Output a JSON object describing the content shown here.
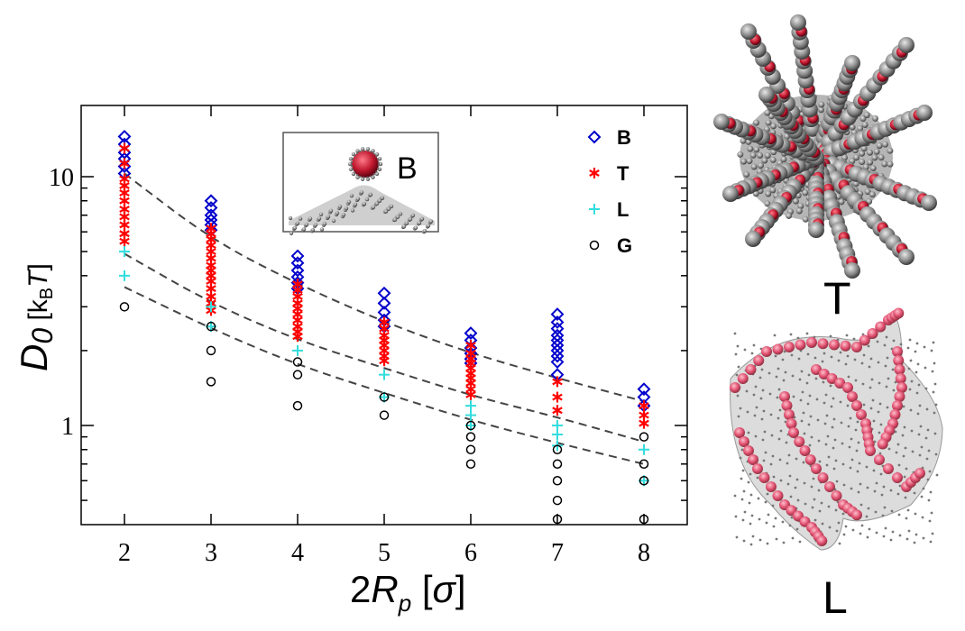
{
  "chart_data": {
    "type": "scatter",
    "xlabel": "2R_p [σ]",
    "ylabel": "D_0 [k_B T]",
    "x_ticks": [
      2,
      3,
      4,
      5,
      6,
      7,
      8
    ],
    "y_ticks": [
      1,
      10
    ],
    "xlim": [
      1.5,
      8.5
    ],
    "ylim": [
      0.4,
      20
    ],
    "y_scale": "log",
    "grid": false,
    "legend_position": "top-right",
    "series": [
      {
        "name": "B",
        "marker": "diamond",
        "color": "#0000cc",
        "points": [
          [
            2,
            14.5
          ],
          [
            2,
            13.5
          ],
          [
            2,
            12.5
          ],
          [
            2,
            11.8
          ],
          [
            2,
            11.0
          ],
          [
            2,
            10.3
          ],
          [
            3,
            8.0
          ],
          [
            3,
            7.5
          ],
          [
            3,
            7.0
          ],
          [
            3,
            6.7
          ],
          [
            3,
            6.4
          ],
          [
            3,
            6.1
          ],
          [
            4,
            4.8
          ],
          [
            4,
            4.5
          ],
          [
            4,
            4.2
          ],
          [
            4,
            3.95
          ],
          [
            4,
            3.75
          ],
          [
            4,
            3.55
          ],
          [
            5,
            3.4
          ],
          [
            5,
            3.1
          ],
          [
            5,
            2.85
          ],
          [
            5,
            2.65
          ],
          [
            5,
            2.5
          ],
          [
            6,
            2.35
          ],
          [
            6,
            2.2
          ],
          [
            6,
            2.05
          ],
          [
            6,
            1.95
          ],
          [
            6,
            1.85
          ],
          [
            6,
            1.78
          ],
          [
            7,
            2.8
          ],
          [
            7,
            2.6
          ],
          [
            7,
            2.45
          ],
          [
            7,
            2.3
          ],
          [
            7,
            2.2
          ],
          [
            7,
            2.1
          ],
          [
            7,
            2.0
          ],
          [
            7,
            1.9
          ],
          [
            7,
            1.8
          ],
          [
            7,
            1.6
          ],
          [
            8,
            1.4
          ],
          [
            8,
            1.3
          ],
          [
            8,
            1.2
          ]
        ]
      },
      {
        "name": "T",
        "marker": "asterisk",
        "color": "#ff0000",
        "points": [
          [
            2,
            13.0
          ],
          [
            2,
            11.3
          ],
          [
            2,
            9.8
          ],
          [
            2,
            9.2
          ],
          [
            2,
            8.6
          ],
          [
            2,
            8.0
          ],
          [
            2,
            7.4
          ],
          [
            2,
            6.9
          ],
          [
            2,
            6.4
          ],
          [
            2,
            5.9
          ],
          [
            2,
            5.5
          ],
          [
            3,
            6.2
          ],
          [
            3,
            5.9
          ],
          [
            3,
            5.6
          ],
          [
            3,
            5.3
          ],
          [
            3,
            5.0
          ],
          [
            3,
            4.7
          ],
          [
            3,
            4.4
          ],
          [
            3,
            4.2
          ],
          [
            3,
            4.0
          ],
          [
            3,
            3.8
          ],
          [
            3,
            3.55
          ],
          [
            3,
            3.3
          ],
          [
            3,
            3.1
          ],
          [
            3,
            2.9
          ],
          [
            4,
            3.7
          ],
          [
            4,
            3.5
          ],
          [
            4,
            3.3
          ],
          [
            4,
            3.1
          ],
          [
            4,
            2.95
          ],
          [
            4,
            2.8
          ],
          [
            4,
            2.65
          ],
          [
            4,
            2.5
          ],
          [
            4,
            2.38
          ],
          [
            4,
            2.28
          ],
          [
            5,
            2.6
          ],
          [
            5,
            2.45
          ],
          [
            5,
            2.3
          ],
          [
            5,
            2.2
          ],
          [
            5,
            2.1
          ],
          [
            5,
            2.0
          ],
          [
            5,
            1.9
          ],
          [
            5,
            1.82
          ],
          [
            6,
            2.1
          ],
          [
            6,
            1.95
          ],
          [
            6,
            1.85
          ],
          [
            6,
            1.78
          ],
          [
            6,
            1.7
          ],
          [
            6,
            1.62
          ],
          [
            6,
            1.55
          ],
          [
            6,
            1.48
          ],
          [
            6,
            1.4
          ],
          [
            6,
            1.33
          ],
          [
            7,
            1.5
          ],
          [
            7,
            1.3
          ],
          [
            7,
            1.15
          ],
          [
            8,
            1.2
          ],
          [
            8,
            1.1
          ],
          [
            8,
            1.02
          ]
        ]
      },
      {
        "name": "L",
        "marker": "plus",
        "color": "#33dddd",
        "points": [
          [
            2,
            5.0
          ],
          [
            2,
            4.0
          ],
          [
            3,
            3.0
          ],
          [
            3,
            2.5
          ],
          [
            4,
            2.0
          ],
          [
            5,
            1.6
          ],
          [
            5,
            1.3
          ],
          [
            6,
            1.2
          ],
          [
            6,
            1.1
          ],
          [
            6,
            1.0
          ],
          [
            7,
            1.0
          ],
          [
            7,
            0.92
          ],
          [
            7,
            0.83
          ],
          [
            8,
            0.8
          ],
          [
            8,
            0.6
          ]
        ]
      },
      {
        "name": "G",
        "marker": "circle",
        "color": "#000000",
        "points": [
          [
            2,
            3.0
          ],
          [
            3,
            2.5
          ],
          [
            3,
            2.0
          ],
          [
            3,
            1.5
          ],
          [
            4,
            1.8
          ],
          [
            4,
            1.6
          ],
          [
            4,
            1.2
          ],
          [
            5,
            1.3
          ],
          [
            5,
            1.1
          ],
          [
            6,
            1.0
          ],
          [
            6,
            0.9
          ],
          [
            6,
            0.8
          ],
          [
            6,
            0.7
          ],
          [
            7,
            0.8
          ],
          [
            7,
            0.7
          ],
          [
            7,
            0.6
          ],
          [
            7,
            0.5
          ],
          [
            7,
            0.42
          ],
          [
            8,
            0.9
          ],
          [
            8,
            0.7
          ],
          [
            8,
            0.6
          ],
          [
            8,
            0.42
          ]
        ]
      }
    ],
    "fit_lines": [
      {
        "style": "dashed",
        "color": "#444444",
        "x": [
          2,
          3,
          4,
          5,
          6,
          7,
          8
        ],
        "y": [
          10.3,
          5.6,
          3.7,
          2.6,
          1.95,
          1.55,
          1.25
        ]
      },
      {
        "style": "dashed",
        "color": "#444444",
        "x": [
          2,
          3,
          4,
          5,
          6,
          7,
          8
        ],
        "y": [
          4.9,
          3.1,
          2.2,
          1.7,
          1.32,
          1.08,
          0.86
        ]
      },
      {
        "style": "dashed",
        "color": "#444444",
        "x": [
          2,
          3,
          4,
          5,
          6,
          7,
          8
        ],
        "y": [
          3.6,
          2.45,
          1.75,
          1.35,
          1.05,
          0.85,
          0.7
        ]
      }
    ]
  },
  "inset": {
    "label": "B"
  },
  "panels": {
    "top_label": "T",
    "bottom_label": "L"
  }
}
